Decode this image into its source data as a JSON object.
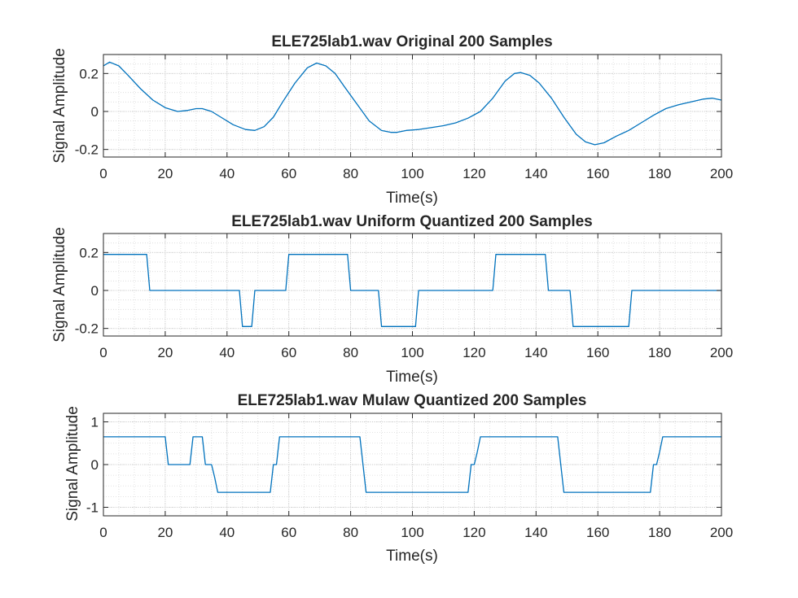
{
  "figure": {
    "background": "#ffffff",
    "line_color": "#0072BD",
    "grid": "dotted minor + major"
  },
  "chart_data": [
    {
      "type": "line",
      "title": "ELE725lab1.wav Original 200 Samples",
      "xlabel": "Time(s)",
      "ylabel": "Signal Amplitude",
      "xlim": [
        0,
        200
      ],
      "ylim": [
        -0.24,
        0.3
      ],
      "xticks": [
        0,
        20,
        40,
        60,
        80,
        100,
        120,
        140,
        160,
        180,
        200
      ],
      "xtick_labels": [
        "0",
        "20",
        "40",
        "60",
        "80",
        "100",
        "120",
        "140",
        "160",
        "180",
        "200"
      ],
      "yticks": [
        -0.2,
        0,
        0.2
      ],
      "ytick_labels": [
        "-0.2",
        "0",
        "0.2"
      ],
      "grid": true,
      "series": [
        {
          "x": [
            0,
            2,
            5,
            8,
            12,
            16,
            20,
            24,
            27,
            30,
            32,
            35,
            38,
            42,
            46,
            49,
            52,
            55,
            58,
            62,
            66,
            69,
            72,
            75,
            78,
            82,
            86,
            90,
            93,
            95,
            98,
            102,
            106,
            110,
            114,
            118,
            122,
            126,
            130,
            133,
            135,
            138,
            141,
            145,
            149,
            153,
            156,
            159,
            162,
            166,
            170,
            174,
            178,
            182,
            186,
            190,
            194,
            197,
            200
          ],
          "y": [
            0.24,
            0.26,
            0.24,
            0.19,
            0.12,
            0.06,
            0.02,
            0.0,
            0.005,
            0.015,
            0.015,
            0.0,
            -0.03,
            -0.07,
            -0.095,
            -0.1,
            -0.08,
            -0.03,
            0.05,
            0.15,
            0.23,
            0.255,
            0.24,
            0.2,
            0.13,
            0.04,
            -0.05,
            -0.1,
            -0.11,
            -0.11,
            -0.1,
            -0.095,
            -0.085,
            -0.075,
            -0.06,
            -0.035,
            0.0,
            0.07,
            0.16,
            0.2,
            0.205,
            0.19,
            0.15,
            0.07,
            -0.03,
            -0.12,
            -0.16,
            -0.175,
            -0.165,
            -0.13,
            -0.1,
            -0.06,
            -0.02,
            0.015,
            0.035,
            0.05,
            0.065,
            0.07,
            0.06
          ]
        }
      ]
    },
    {
      "type": "line",
      "title": "ELE725lab1.wav Uniform Quantized 200 Samples",
      "xlabel": "Time(s)",
      "ylabel": "Signal Amplitude",
      "xlim": [
        0,
        200
      ],
      "ylim": [
        -0.24,
        0.3
      ],
      "xticks": [
        0,
        20,
        40,
        60,
        80,
        100,
        120,
        140,
        160,
        180,
        200
      ],
      "xtick_labels": [
        "0",
        "20",
        "40",
        "60",
        "80",
        "100",
        "120",
        "140",
        "160",
        "180",
        "200"
      ],
      "yticks": [
        -0.2,
        0,
        0.2
      ],
      "ytick_labels": [
        "-0.2",
        "0",
        "0.2"
      ],
      "grid": true,
      "series": [
        {
          "x": [
            0,
            14,
            15,
            44,
            45,
            48,
            49,
            59,
            60,
            79,
            80,
            89,
            90,
            101,
            102,
            126,
            127,
            143,
            144,
            151,
            152,
            170,
            171,
            200
          ],
          "y": [
            0.19,
            0.19,
            0.0,
            0.0,
            -0.19,
            -0.19,
            0.0,
            0.0,
            0.19,
            0.19,
            0.0,
            0.0,
            -0.19,
            -0.19,
            0.0,
            0.0,
            0.19,
            0.19,
            0.0,
            0.0,
            -0.19,
            -0.19,
            0.0,
            0.0
          ]
        }
      ]
    },
    {
      "type": "line",
      "title": "ELE725lab1.wav Mulaw Quantized 200 Samples",
      "xlabel": "Time(s)",
      "ylabel": "Signal Amplitude",
      "xlim": [
        0,
        200
      ],
      "ylim": [
        -1.2,
        1.2
      ],
      "xticks": [
        0,
        20,
        40,
        60,
        80,
        100,
        120,
        140,
        160,
        180,
        200
      ],
      "xtick_labels": [
        "0",
        "20",
        "40",
        "60",
        "80",
        "100",
        "120",
        "140",
        "160",
        "180",
        "200"
      ],
      "yticks": [
        -1,
        0,
        1
      ],
      "ytick_labels": [
        "-1",
        "0",
        "1"
      ],
      "grid": true,
      "series": [
        {
          "x": [
            0,
            20,
            21,
            28,
            29,
            32,
            33,
            35,
            36,
            37,
            38,
            54,
            55,
            56,
            57,
            83,
            84,
            85,
            86,
            118,
            119,
            120,
            121,
            122,
            123,
            147,
            148,
            149,
            150,
            177,
            178,
            179,
            180,
            181,
            182,
            200
          ],
          "y": [
            0.65,
            0.65,
            0.0,
            0.0,
            0.65,
            0.65,
            0.0,
            0.0,
            -0.3,
            -0.65,
            -0.65,
            -0.65,
            0.0,
            0.0,
            0.65,
            0.65,
            0.0,
            -0.65,
            -0.65,
            -0.65,
            0.0,
            0.0,
            0.3,
            0.65,
            0.65,
            0.65,
            0.0,
            -0.65,
            -0.65,
            -0.65,
            0.0,
            0.0,
            0.3,
            0.65,
            0.65,
            0.65
          ]
        }
      ]
    }
  ]
}
